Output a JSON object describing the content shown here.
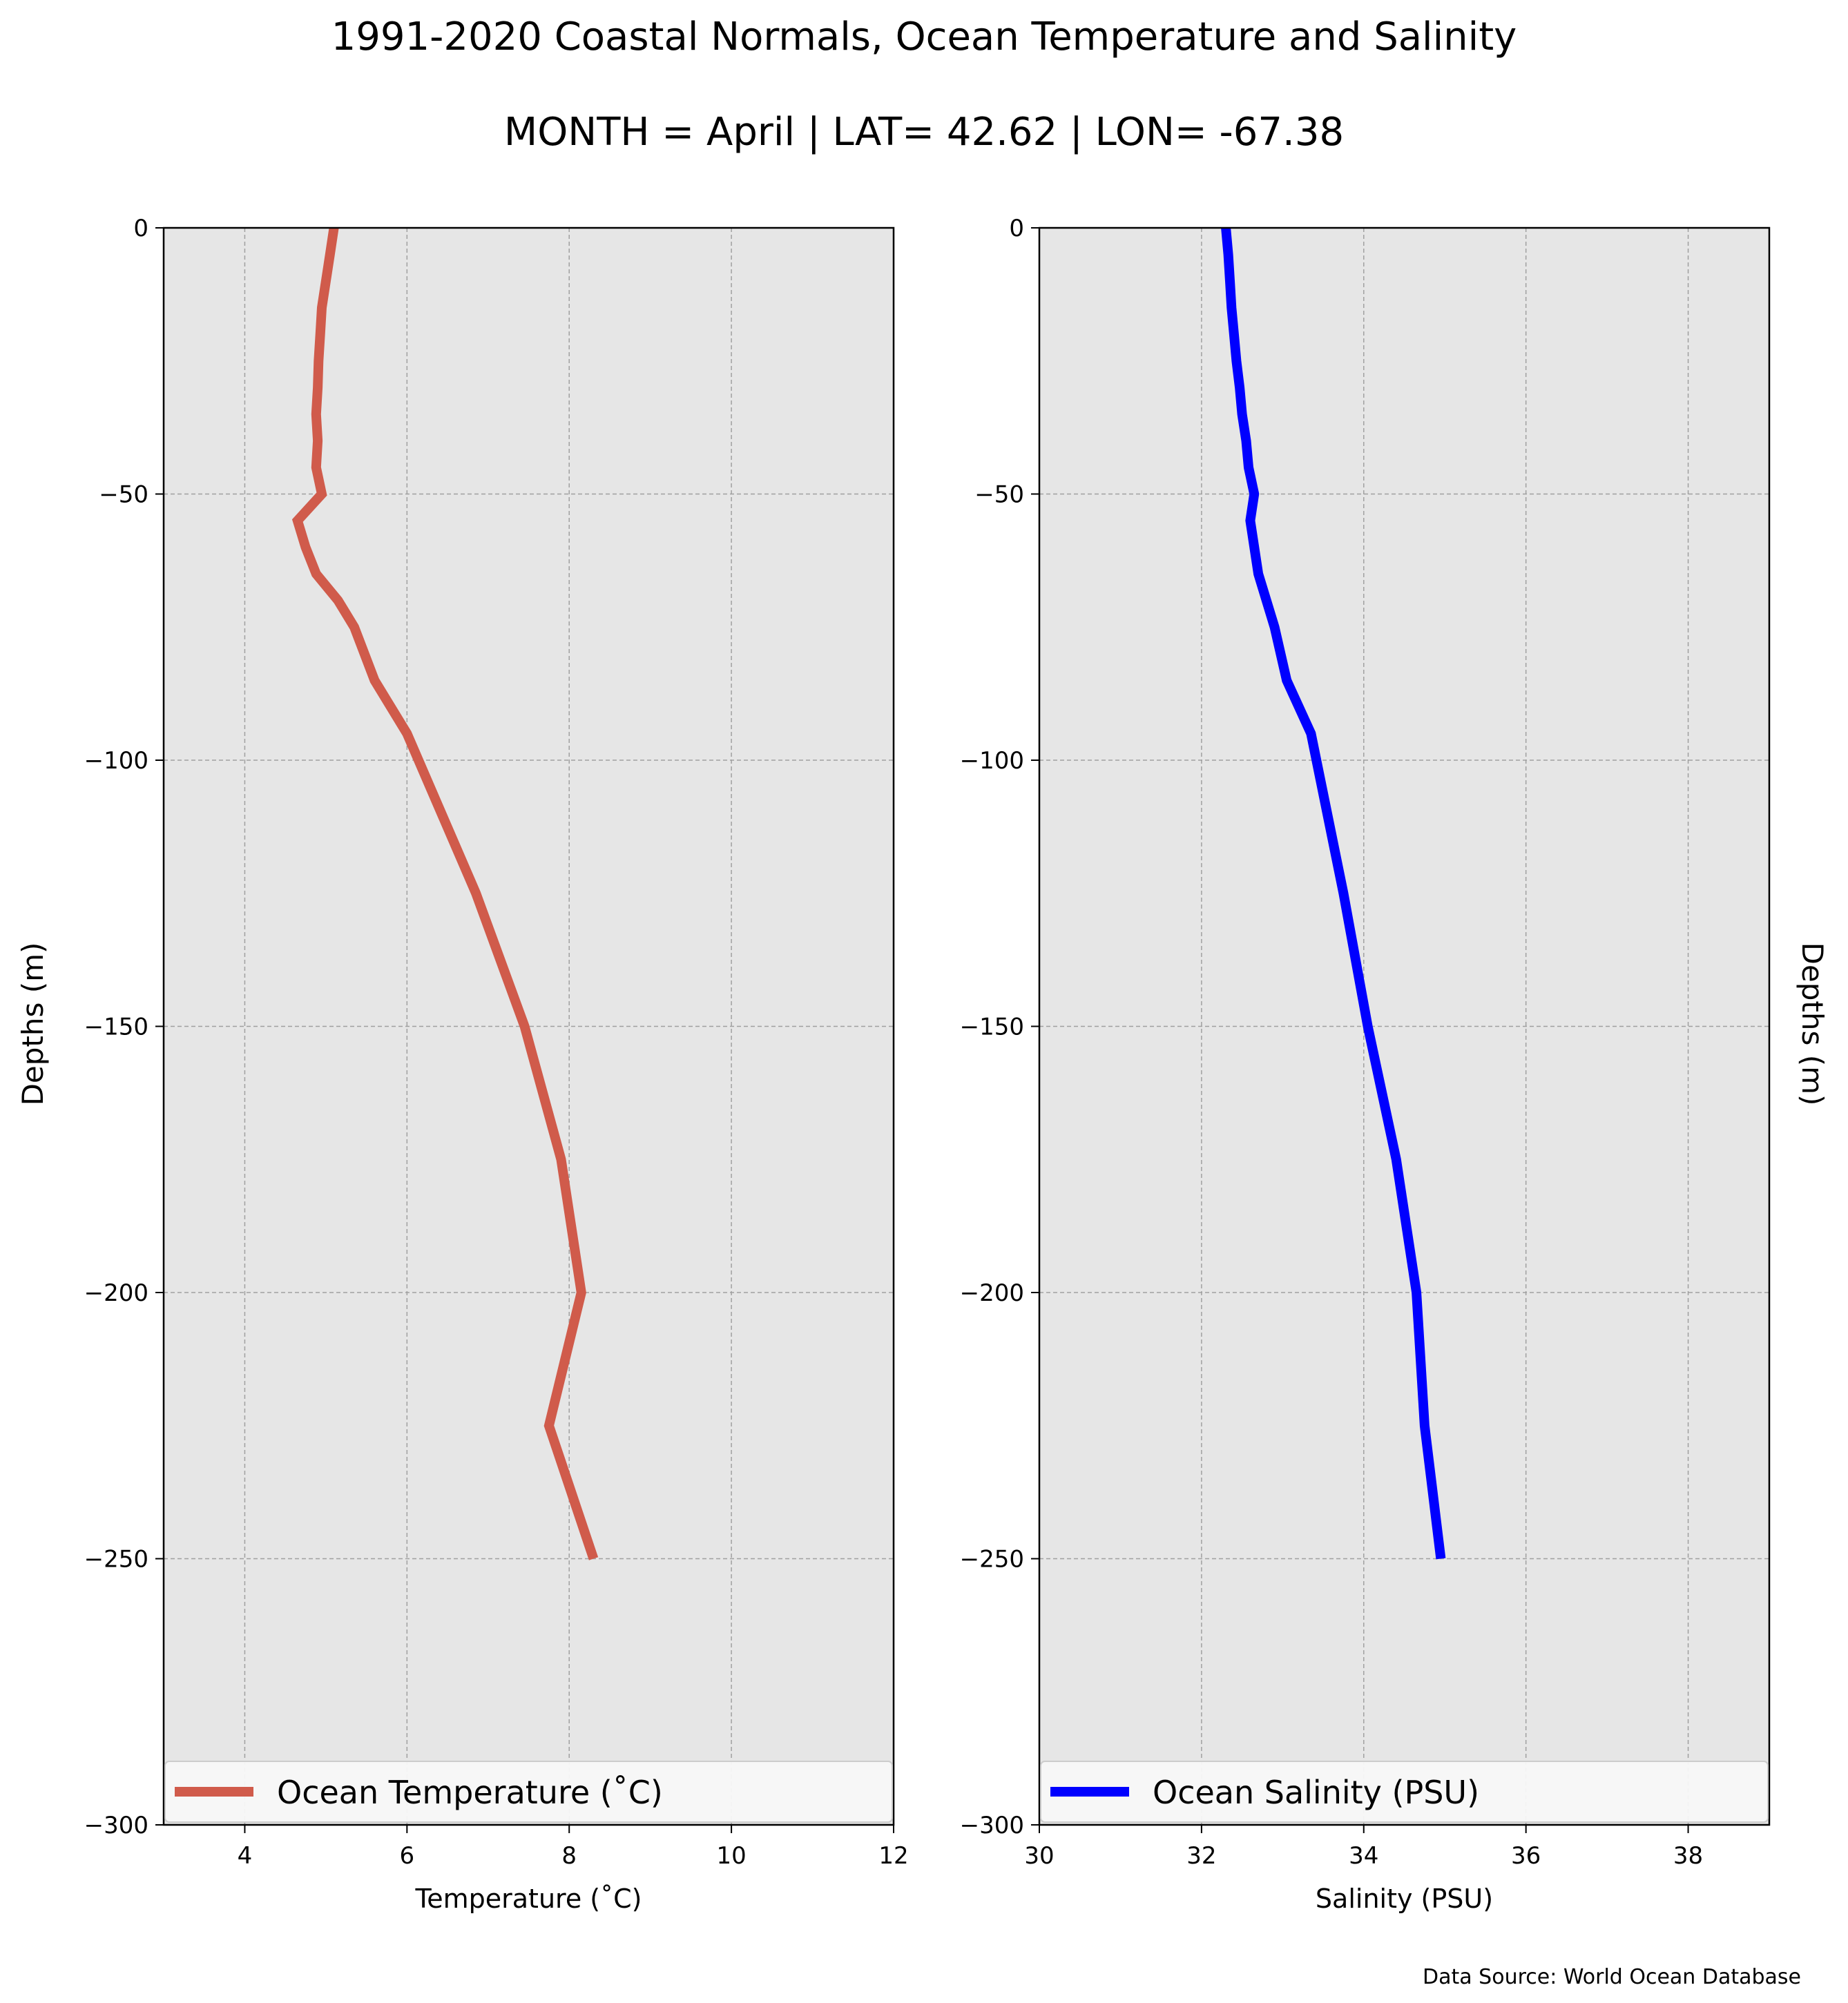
{
  "figure": {
    "title": "1991-2020 Coastal Normals, Ocean Temperature and Salinity",
    "subtitle": "MONTH = April | LAT= 42.62 | LON= -67.38",
    "source_note": "Data Source: World Ocean Database",
    "colors": {
      "background": "#ffffff",
      "plot_background": "#e6e6e6",
      "grid": "#a0a0a0"
    }
  },
  "chart_data": [
    {
      "type": "line",
      "orientation": "profile",
      "xlabel": "Temperature ($^\\circ$C)",
      "xlabel_display": "Temperature (˚C)",
      "ylabel": "Depths (m)",
      "xlim": [
        3,
        12
      ],
      "ylim": [
        -300,
        0
      ],
      "xticks": [
        4,
        6,
        8,
        10,
        12
      ],
      "yticks": [
        0,
        -50,
        -100,
        -150,
        -200,
        -250,
        -300
      ],
      "ytick_labels": [
        "0",
        "−50",
        "−100",
        "−150",
        "−200",
        "−250",
        "−300"
      ],
      "grid": true,
      "legend": {
        "placement": "lower center",
        "entries": [
          "Ocean Temperature (˚C)"
        ]
      },
      "series": [
        {
          "name": "Ocean Temperature (˚C)",
          "color": "#d05b4b",
          "points": [
            {
              "x": 5.1,
              "y": 0
            },
            {
              "x": 5.05,
              "y": -5
            },
            {
              "x": 5.0,
              "y": -10
            },
            {
              "x": 4.95,
              "y": -15
            },
            {
              "x": 4.93,
              "y": -20
            },
            {
              "x": 4.91,
              "y": -25
            },
            {
              "x": 4.9,
              "y": -30
            },
            {
              "x": 4.88,
              "y": -35
            },
            {
              "x": 4.9,
              "y": -40
            },
            {
              "x": 4.88,
              "y": -45
            },
            {
              "x": 4.95,
              "y": -50
            },
            {
              "x": 4.65,
              "y": -55
            },
            {
              "x": 4.75,
              "y": -60
            },
            {
              "x": 4.88,
              "y": -65
            },
            {
              "x": 5.15,
              "y": -70
            },
            {
              "x": 5.35,
              "y": -75
            },
            {
              "x": 5.6,
              "y": -85
            },
            {
              "x": 6.0,
              "y": -95
            },
            {
              "x": 6.85,
              "y": -125
            },
            {
              "x": 7.45,
              "y": -150
            },
            {
              "x": 7.9,
              "y": -175
            },
            {
              "x": 8.15,
              "y": -200
            },
            {
              "x": 7.75,
              "y": -225
            },
            {
              "x": 8.3,
              "y": -250
            }
          ]
        }
      ]
    },
    {
      "type": "line",
      "orientation": "profile",
      "xlabel": "Salinity (PSU)",
      "ylabel": "Depths (m)",
      "xlim": [
        30,
        39
      ],
      "ylim": [
        -300,
        0
      ],
      "xticks": [
        30,
        32,
        34,
        36,
        38
      ],
      "yticks": [
        0,
        -50,
        -100,
        -150,
        -200,
        -250,
        -300
      ],
      "ytick_labels": [
        "0",
        "−50",
        "−100",
        "−150",
        "−200",
        "−250",
        "−300"
      ],
      "grid": true,
      "legend": {
        "placement": "lower center",
        "entries": [
          "Ocean Salinity (PSU)"
        ]
      },
      "series": [
        {
          "name": "Ocean Salinity (PSU)",
          "color": "#0000ff",
          "points": [
            {
              "x": 32.3,
              "y": 0
            },
            {
              "x": 32.33,
              "y": -5
            },
            {
              "x": 32.35,
              "y": -10
            },
            {
              "x": 32.37,
              "y": -15
            },
            {
              "x": 32.4,
              "y": -20
            },
            {
              "x": 32.43,
              "y": -25
            },
            {
              "x": 32.47,
              "y": -30
            },
            {
              "x": 32.5,
              "y": -35
            },
            {
              "x": 32.55,
              "y": -40
            },
            {
              "x": 32.58,
              "y": -45
            },
            {
              "x": 32.65,
              "y": -50
            },
            {
              "x": 32.6,
              "y": -55
            },
            {
              "x": 32.7,
              "y": -65
            },
            {
              "x": 32.9,
              "y": -75
            },
            {
              "x": 33.05,
              "y": -85
            },
            {
              "x": 33.35,
              "y": -95
            },
            {
              "x": 33.75,
              "y": -125
            },
            {
              "x": 34.05,
              "y": -150
            },
            {
              "x": 34.4,
              "y": -175
            },
            {
              "x": 34.65,
              "y": -200
            },
            {
              "x": 34.75,
              "y": -225
            },
            {
              "x": 34.95,
              "y": -250
            }
          ]
        }
      ]
    }
  ]
}
